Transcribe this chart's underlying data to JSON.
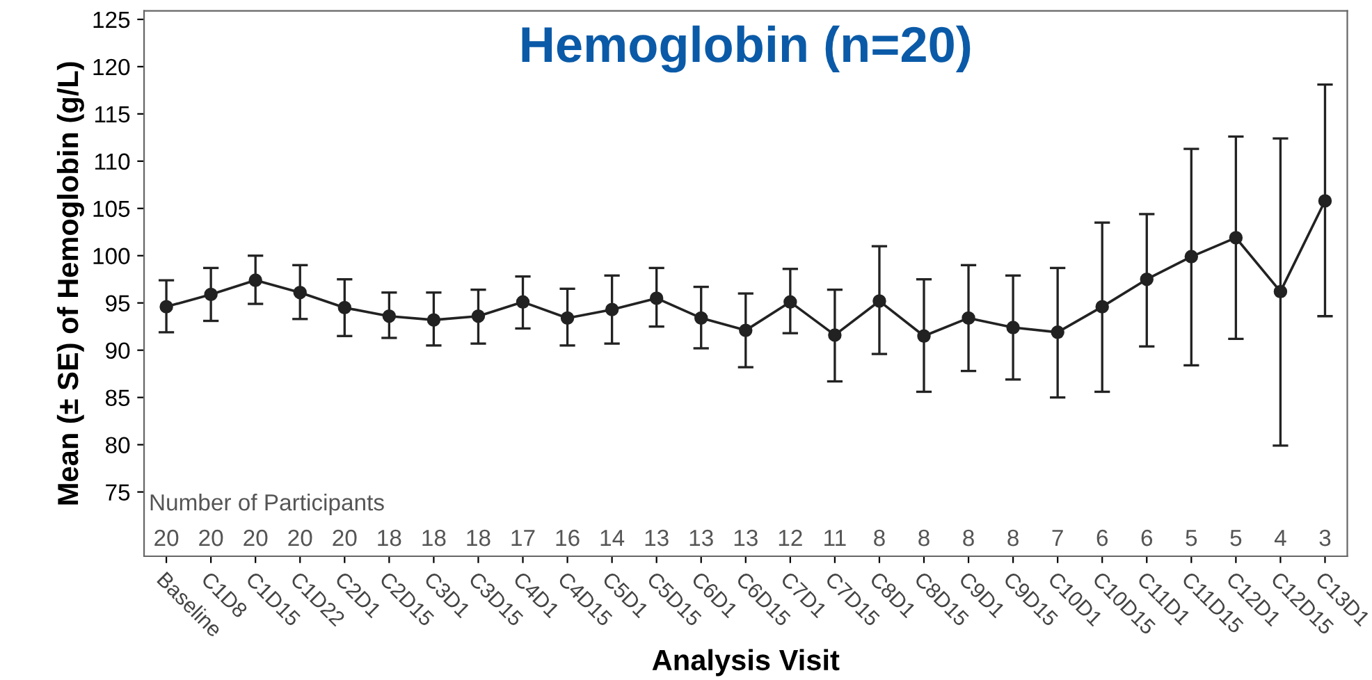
{
  "chart_data": {
    "type": "line",
    "title": "Hemoglobin (n=20)",
    "xlabel": "Analysis Visit",
    "ylabel": "Mean (± SE) of Hemoglobin (g/L)",
    "categories": [
      "Baseline",
      "C1D8",
      "C1D15",
      "C1D22",
      "C2D1",
      "C2D15",
      "C3D1",
      "C3D15",
      "C4D1",
      "C4D15",
      "C5D1",
      "C5D15",
      "C6D1",
      "C6D15",
      "C7D1",
      "C7D15",
      "C8D1",
      "C8D15",
      "C9D1",
      "C9D15",
      "C10D1",
      "C10D15",
      "C11D1",
      "C11D15",
      "C12D1",
      "C12D15",
      "C13D1"
    ],
    "series": [
      {
        "color": "#222222",
        "values": [
          94.6,
          95.9,
          97.4,
          96.1,
          94.5,
          93.6,
          93.2,
          93.6,
          95.1,
          93.4,
          94.3,
          95.5,
          93.4,
          92.1,
          95.1,
          91.6,
          95.2,
          91.5,
          93.4,
          92.4,
          91.9,
          94.6,
          97.5,
          99.9,
          101.9,
          96.2,
          105.8
        ],
        "errors": [
          [
            91.9,
            97.4
          ],
          [
            93.1,
            98.7
          ],
          [
            94.9,
            100.0
          ],
          [
            93.3,
            99.0
          ],
          [
            91.5,
            97.5
          ],
          [
            91.3,
            96.1
          ],
          [
            90.5,
            96.1
          ],
          [
            90.7,
            96.4
          ],
          [
            92.3,
            97.8
          ],
          [
            90.5,
            96.5
          ],
          [
            90.7,
            97.9
          ],
          [
            92.5,
            98.7
          ],
          [
            90.2,
            96.7
          ],
          [
            88.2,
            96.0
          ],
          [
            91.8,
            98.6
          ],
          [
            86.7,
            96.4
          ],
          [
            89.6,
            101.0
          ],
          [
            85.6,
            97.5
          ],
          [
            87.8,
            99.0
          ],
          [
            86.9,
            97.9
          ],
          [
            85.0,
            98.7
          ],
          [
            85.6,
            103.5
          ],
          [
            90.4,
            104.4
          ],
          [
            88.4,
            111.3
          ],
          [
            91.2,
            112.6
          ],
          [
            79.9,
            112.4
          ],
          [
            93.6,
            118.1
          ]
        ]
      }
    ],
    "ylim": [
      68.2,
      125.9
    ],
    "yticks": [
      75,
      80,
      85,
      90,
      95,
      100,
      105,
      110,
      115,
      120,
      125
    ],
    "grid": false,
    "legend": false,
    "marker": "circle",
    "line_style": "solid",
    "annotations": [
      "Number of Participants",
      "20",
      "20",
      "20",
      "20",
      "20",
      "18",
      "18",
      "18",
      "17",
      "16",
      "14",
      "13",
      "13",
      "13",
      "12",
      "11",
      "8",
      "8",
      "8",
      "8",
      "7",
      "6",
      "6",
      "5",
      "5",
      "4",
      "3"
    ]
  }
}
